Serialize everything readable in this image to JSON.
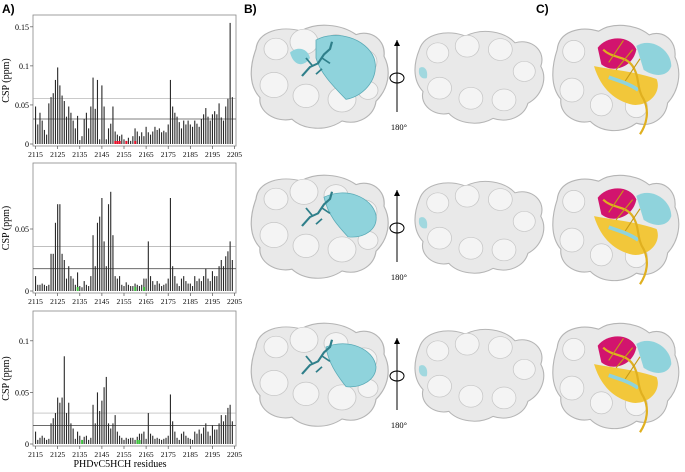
{
  "panels": {
    "a_label": "A)",
    "b_label": "B)",
    "c_label": "C)"
  },
  "rotation_label": "180°",
  "colors": {
    "bar": "#2a2a2a",
    "threshold": "#555555",
    "sd_line": "#aaaaaa",
    "highlight_red": "#e8102a",
    "highlight_green": "#3fc23f",
    "surface": "#e9e9e9",
    "surface_edge": "#b5b5b5",
    "cyan": "#8fd3dc",
    "magenta": "#d2146e",
    "yellow": "#f2c73a"
  },
  "chart_data": [
    {
      "type": "bar",
      "ylabel": "CSP (ppm)",
      "xlabel": "",
      "x_start": 2115,
      "x_ticks": [
        2115,
        2125,
        2135,
        2145,
        2155,
        2165,
        2175,
        2185,
        2195,
        2205
      ],
      "y_ticks": [
        0,
        0.05,
        0.1,
        0.15
      ],
      "ylim": [
        0,
        0.16
      ],
      "threshold": 0.032,
      "sd_line": 0.058,
      "values": [
        0.048,
        0.025,
        0.04,
        0.03,
        0.018,
        0.012,
        0.052,
        0.06,
        0.065,
        0.082,
        0.098,
        0.075,
        0.062,
        0.055,
        0.035,
        0.048,
        0.04,
        0.03,
        0.02,
        0.036,
        0.005,
        0.01,
        0.032,
        0.04,
        0.02,
        0.048,
        0.085,
        0.045,
        0.082,
        0.006,
        0.075,
        0.048,
        0.006,
        0.02,
        0.026,
        0.048,
        0.016,
        0.012,
        0.01,
        0.012,
        0.006,
        0.004,
        0.008,
        0.004,
        0.01,
        0.02,
        0.016,
        0.01,
        0.015,
        0.01,
        0.022,
        0.015,
        0.012,
        0.016,
        0.022,
        0.018,
        0.02,
        0.015,
        0.017,
        0.015,
        0.025,
        0.082,
        0.048,
        0.04,
        0.035,
        0.028,
        0.02,
        0.03,
        0.025,
        0.03,
        0.025,
        0.022,
        0.03,
        0.026,
        0.022,
        0.032,
        0.038,
        0.046,
        0.035,
        0.03,
        0.038,
        0.042,
        0.038,
        0.052,
        0.034,
        0.03,
        0.048,
        0.058,
        0.155,
        0.06
      ],
      "red_indices": [
        36,
        37,
        38,
        41,
        45
      ],
      "green_indices": []
    },
    {
      "type": "bar",
      "ylabel": "CSP (ppm)",
      "xlabel": "",
      "x_start": 2115,
      "x_ticks": [
        2115,
        2125,
        2135,
        2145,
        2155,
        2165,
        2175,
        2185,
        2195,
        2205
      ],
      "y_ticks": [
        0,
        0.05
      ],
      "ylim": [
        0,
        0.1
      ],
      "threshold": 0.018,
      "sd_line": 0.036,
      "values": [
        0.012,
        0.005,
        0.005,
        0.006,
        0.005,
        0.004,
        0.005,
        0.03,
        0.03,
        0.055,
        0.07,
        0.07,
        0.03,
        0.025,
        0.01,
        0.02,
        0.012,
        0.01,
        0.005,
        0.015,
        0.004,
        0.003,
        0.008,
        0.005,
        0.004,
        0.012,
        0.045,
        0.02,
        0.055,
        0.06,
        0.075,
        0.04,
        0.02,
        0.07,
        0.08,
        0.045,
        0.012,
        0.01,
        0.012,
        0.005,
        0.004,
        0.007,
        0.005,
        0.004,
        0.004,
        0.006,
        0.005,
        0.004,
        0.005,
        0.01,
        0.01,
        0.04,
        0.012,
        0.008,
        0.005,
        0.008,
        0.006,
        0.004,
        0.005,
        0.006,
        0.01,
        0.075,
        0.02,
        0.012,
        0.006,
        0.004,
        0.01,
        0.012,
        0.008,
        0.006,
        0.006,
        0.004,
        0.012,
        0.008,
        0.01,
        0.008,
        0.012,
        0.018,
        0.01,
        0.008,
        0.016,
        0.012,
        0.012,
        0.02,
        0.025,
        0.02,
        0.028,
        0.032,
        0.04,
        0.025
      ],
      "red_indices": [],
      "green_indices": [
        19,
        45,
        49
      ]
    },
    {
      "type": "bar",
      "ylabel": "CSP (ppm)",
      "xlabel": "PHDvC5HCH residues",
      "x_start": 2115,
      "x_ticks": [
        2115,
        2125,
        2135,
        2145,
        2155,
        2165,
        2175,
        2185,
        2195,
        2205
      ],
      "y_ticks": [
        0,
        0.05,
        0.1
      ],
      "ylim": [
        0,
        0.125
      ],
      "threshold": 0.018,
      "sd_line": 0.03,
      "values": [
        0.012,
        0.004,
        0.006,
        0.008,
        0.006,
        0.004,
        0.005,
        0.02,
        0.025,
        0.03,
        0.045,
        0.04,
        0.045,
        0.085,
        0.03,
        0.04,
        0.02,
        0.015,
        0.005,
        0.012,
        0.008,
        0.004,
        0.007,
        0.008,
        0.004,
        0.006,
        0.038,
        0.02,
        0.05,
        0.032,
        0.042,
        0.055,
        0.065,
        0.02,
        0.015,
        0.02,
        0.028,
        0.012,
        0.008,
        0.006,
        0.004,
        0.006,
        0.005,
        0.006,
        0.006,
        0.004,
        0.007,
        0.01,
        0.01,
        0.012,
        0.005,
        0.03,
        0.01,
        0.008,
        0.005,
        0.006,
        0.005,
        0.004,
        0.005,
        0.006,
        0.008,
        0.048,
        0.022,
        0.012,
        0.006,
        0.004,
        0.01,
        0.012,
        0.008,
        0.006,
        0.005,
        0.004,
        0.012,
        0.01,
        0.014,
        0.01,
        0.016,
        0.02,
        0.012,
        0.008,
        0.018,
        0.014,
        0.014,
        0.02,
        0.028,
        0.022,
        0.028,
        0.035,
        0.038,
        0.022
      ],
      "red_indices": [],
      "green_indices": [
        21,
        46,
        47
      ]
    }
  ]
}
